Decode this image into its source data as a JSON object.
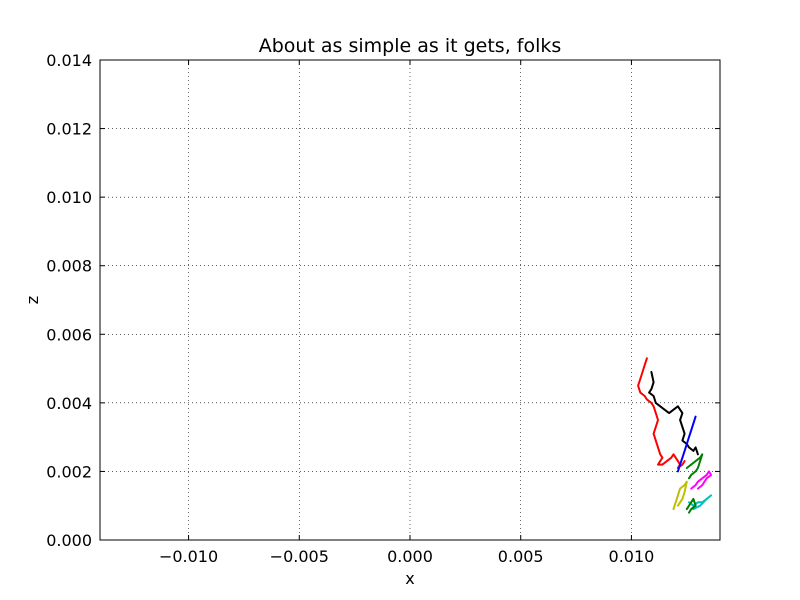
{
  "chart_data": {
    "type": "line",
    "title": "About as simple as it gets, folks",
    "xlabel": "x",
    "ylabel": "z",
    "xlim": [
      -0.014,
      0.014
    ],
    "ylim": [
      0.0,
      0.014
    ],
    "grid": true,
    "grid_style": "dotted",
    "xticks": [
      -0.01,
      -0.005,
      0.0,
      0.005,
      0.01
    ],
    "xtick_labels": [
      "−0.010",
      "−0.005",
      "0.000",
      "0.005",
      "0.010"
    ],
    "yticks": [
      0.0,
      0.002,
      0.004,
      0.006,
      0.008,
      0.01,
      0.012,
      0.014
    ],
    "ytick_labels": [
      "0.000",
      "0.002",
      "0.004",
      "0.006",
      "0.008",
      "0.010",
      "0.012",
      "0.014"
    ],
    "series": [
      {
        "color": "#ff0000",
        "points": [
          [
            0.0107,
            0.0053
          ],
          [
            0.0106,
            0.0051
          ],
          [
            0.0105,
            0.0049
          ],
          [
            0.0104,
            0.0047
          ],
          [
            0.0103,
            0.0045
          ],
          [
            0.0104,
            0.0043
          ],
          [
            0.0106,
            0.0042
          ],
          [
            0.0107,
            0.0041
          ],
          [
            0.0109,
            0.004
          ],
          [
            0.011,
            0.0039
          ],
          [
            0.0111,
            0.0037
          ],
          [
            0.0112,
            0.0035
          ],
          [
            0.0111,
            0.0033
          ],
          [
            0.011,
            0.0031
          ],
          [
            0.0111,
            0.0029
          ],
          [
            0.0112,
            0.0027
          ],
          [
            0.0113,
            0.0025
          ],
          [
            0.0114,
            0.0024
          ],
          [
            0.0113,
            0.0023
          ],
          [
            0.0112,
            0.0022
          ],
          [
            0.0114,
            0.0022
          ],
          [
            0.0116,
            0.0023
          ],
          [
            0.0118,
            0.0024
          ],
          [
            0.0119,
            0.0025
          ],
          [
            0.0121,
            0.0023
          ],
          [
            0.0122,
            0.0022
          ],
          [
            0.0121,
            0.0021
          ],
          [
            0.0123,
            0.0022
          ],
          [
            0.0124,
            0.0023
          ]
        ]
      },
      {
        "color": "#000000",
        "points": [
          [
            0.0109,
            0.0049
          ],
          [
            0.011,
            0.0046
          ],
          [
            0.0109,
            0.0044
          ],
          [
            0.0108,
            0.0043
          ],
          [
            0.011,
            0.0042
          ],
          [
            0.0111,
            0.004
          ],
          [
            0.0113,
            0.0039
          ],
          [
            0.0115,
            0.0038
          ],
          [
            0.0117,
            0.0037
          ],
          [
            0.0119,
            0.0038
          ],
          [
            0.0121,
            0.0039
          ],
          [
            0.0122,
            0.0038
          ],
          [
            0.0123,
            0.0037
          ],
          [
            0.0122,
            0.0035
          ],
          [
            0.0123,
            0.0033
          ],
          [
            0.0124,
            0.0031
          ],
          [
            0.0123,
            0.0029
          ],
          [
            0.0125,
            0.0028
          ],
          [
            0.0126,
            0.0027
          ],
          [
            0.0128,
            0.0026
          ],
          [
            0.0129,
            0.0027
          ],
          [
            0.013,
            0.0025
          ]
        ]
      },
      {
        "color": "#0000ff",
        "points": [
          [
            0.0129,
            0.0036
          ],
          [
            0.0128,
            0.0034
          ],
          [
            0.0127,
            0.0032
          ],
          [
            0.0126,
            0.003
          ],
          [
            0.0125,
            0.0028
          ],
          [
            0.0124,
            0.0026
          ],
          [
            0.0123,
            0.0024
          ],
          [
            0.0122,
            0.0022
          ],
          [
            0.0121,
            0.002
          ]
        ]
      },
      {
        "color": "#008000",
        "points": [
          [
            0.0125,
            0.0021
          ],
          [
            0.0127,
            0.0022
          ],
          [
            0.0129,
            0.0023
          ],
          [
            0.0131,
            0.0024
          ],
          [
            0.0132,
            0.0025
          ],
          [
            0.0131,
            0.0023
          ],
          [
            0.013,
            0.0021
          ],
          [
            0.0129,
            0.002
          ],
          [
            0.0127,
            0.0019
          ],
          [
            0.0126,
            0.0018
          ]
        ]
      },
      {
        "color": "#ff00ff",
        "points": [
          [
            0.0127,
            0.0015
          ],
          [
            0.0129,
            0.0016
          ],
          [
            0.013,
            0.0017
          ],
          [
            0.0132,
            0.0018
          ],
          [
            0.0134,
            0.0019
          ],
          [
            0.0135,
            0.002
          ],
          [
            0.0136,
            0.0019
          ],
          [
            0.0134,
            0.0018
          ],
          [
            0.0132,
            0.0016
          ],
          [
            0.013,
            0.0015
          ]
        ]
      },
      {
        "color": "#bfbf00",
        "points": [
          [
            0.0119,
            0.0009
          ],
          [
            0.012,
            0.0011
          ],
          [
            0.0121,
            0.0013
          ],
          [
            0.0122,
            0.0015
          ],
          [
            0.0124,
            0.0016
          ],
          [
            0.0125,
            0.0017
          ],
          [
            0.0124,
            0.0014
          ],
          [
            0.0123,
            0.0012
          ],
          [
            0.0121,
            0.001
          ]
        ]
      },
      {
        "color": "#00bfbf",
        "points": [
          [
            0.0126,
            0.0011
          ],
          [
            0.0128,
            0.001
          ],
          [
            0.013,
            0.0011
          ],
          [
            0.0132,
            0.0011
          ],
          [
            0.0134,
            0.0012
          ],
          [
            0.0136,
            0.0013
          ],
          [
            0.0134,
            0.0012
          ],
          [
            0.0131,
            0.001
          ],
          [
            0.0128,
            0.0009
          ]
        ]
      },
      {
        "color": "#007f00",
        "points": [
          [
            0.0125,
            0.0009
          ],
          [
            0.0126,
            0.001
          ],
          [
            0.0127,
            0.0011
          ],
          [
            0.0128,
            0.0012
          ],
          [
            0.0129,
            0.001
          ],
          [
            0.0127,
            0.0009
          ],
          [
            0.0126,
            0.0008
          ]
        ]
      }
    ]
  }
}
